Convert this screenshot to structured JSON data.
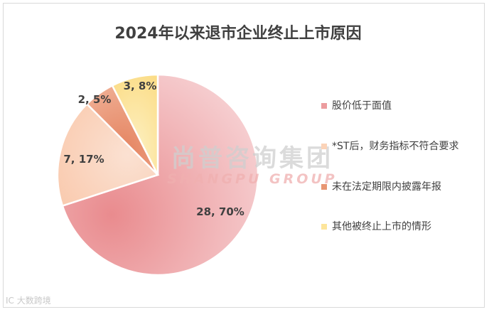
{
  "chart_data": {
    "type": "pie",
    "title": "2024年以来退市企业终止上市原因",
    "slices": [
      {
        "name": "股价低于面值",
        "value": 28,
        "percent": "70%",
        "label": "28, 70%",
        "color": "#ec9c9e"
      },
      {
        "name": "*ST后，财务指标不符合要求",
        "value": 7,
        "percent": "17%",
        "label": "7, 17%",
        "color": "#fbd3b8"
      },
      {
        "name": "未在法定期限内披露年报",
        "value": 2,
        "percent": "5%",
        "label": "2, 5%",
        "color": "#e89673"
      },
      {
        "name": "其他被终止上市的情形",
        "value": 3,
        "percent": "8%",
        "label": "3, 8%",
        "color": "#fde59b"
      }
    ],
    "legend_position": "right"
  },
  "watermark": {
    "cn": "尚普咨询集团",
    "en": "SHANGPU GROUP"
  },
  "corner_mark": "IC 大数跨境"
}
